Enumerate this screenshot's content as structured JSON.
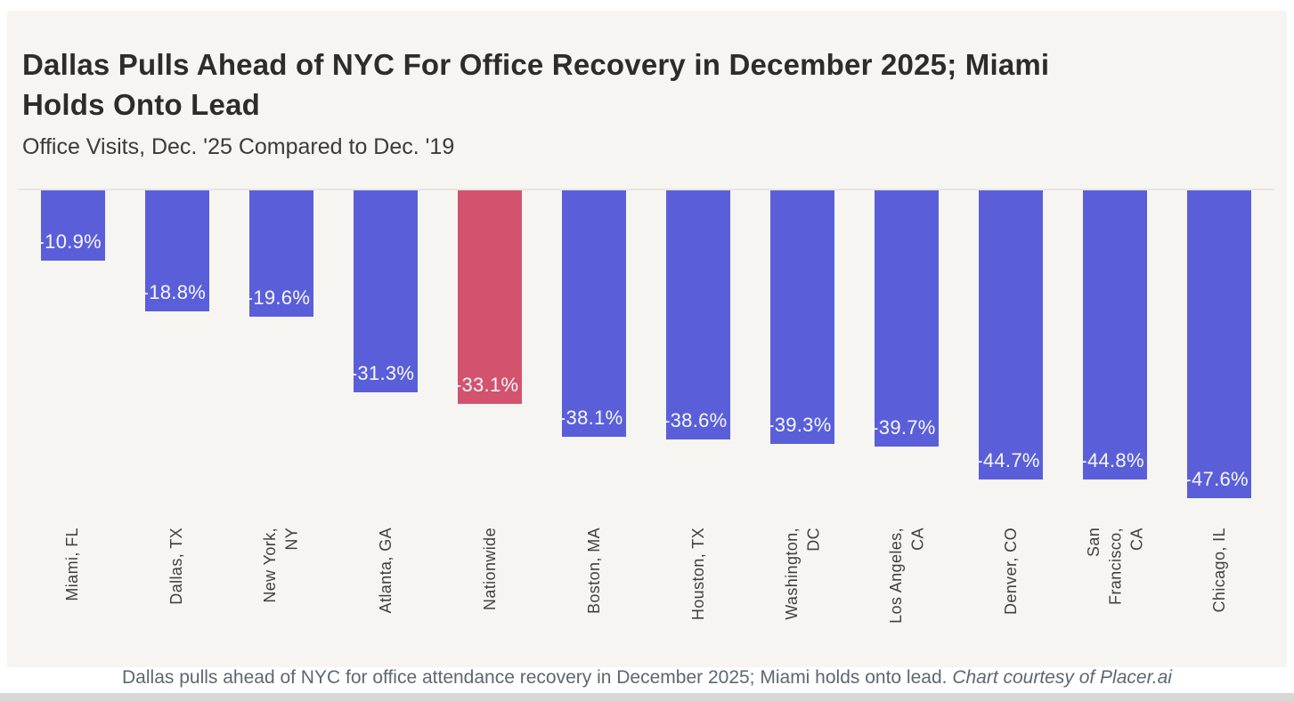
{
  "header": {
    "title_lines": [
      "Dallas Pulls Ahead of NYC For Office Recovery in December 2025; Miami",
      "Holds Onto Lead"
    ],
    "subtitle": "Office Visits, Dec. '25 Compared to Dec. '19"
  },
  "chart_data": {
    "type": "bar",
    "orientation": "vertical-negative",
    "title": "Dallas Pulls Ahead of NYC For Office Recovery in December 2025; Miami Holds Onto Lead",
    "subtitle": "Office Visits, Dec. '25 Compared to Dec. '19",
    "categories": [
      "Miami, FL",
      "Dallas, TX",
      "New York, NY",
      "Atlanta, GA",
      "Nationwide",
      "Boston, MA",
      "Houston, TX",
      "Washington, DC",
      "Los Angeles, CA",
      "Denver, CO",
      "San Francisco, CA",
      "Chicago, IL"
    ],
    "category_label_lines": [
      [
        "Miami, FL"
      ],
      [
        "Dallas, TX"
      ],
      [
        "New York,",
        "NY"
      ],
      [
        "Atlanta, GA"
      ],
      [
        "Nationwide"
      ],
      [
        "Boston, MA"
      ],
      [
        "Houston, TX"
      ],
      [
        "Washington,",
        "DC"
      ],
      [
        "Los Angeles,",
        "CA"
      ],
      [
        "Denver, CO"
      ],
      [
        "San",
        "Francisco,",
        "CA"
      ],
      [
        "Chicago, IL"
      ]
    ],
    "values": [
      -10.9,
      -18.8,
      -19.6,
      -31.3,
      -33.1,
      -38.1,
      -38.6,
      -39.3,
      -39.7,
      -44.7,
      -44.8,
      -47.6
    ],
    "value_labels": [
      "-10.9%",
      "-18.8%",
      "-19.6%",
      "-31.3%",
      "-33.1%",
      "-38.1%",
      "-38.6%",
      "-39.3%",
      "-39.7%",
      "-44.7%",
      "-44.8%",
      "-47.6%"
    ],
    "highlight_index": 4,
    "bar_color": "#5a5fd9",
    "highlight_color": "#d3536e",
    "value_label_color": "#f7f7fd",
    "background": "#f7f5f2",
    "zero_line_color": "#e8e5e1",
    "ylim": [
      -50,
      0
    ],
    "grid": "zero-line-only",
    "legend": "none"
  },
  "caption": {
    "text": "Dallas pulls ahead of NYC for office attendance recovery in December 2025; Miami holds onto lead. ",
    "credit": "Chart courtesy of Placer.ai"
  }
}
